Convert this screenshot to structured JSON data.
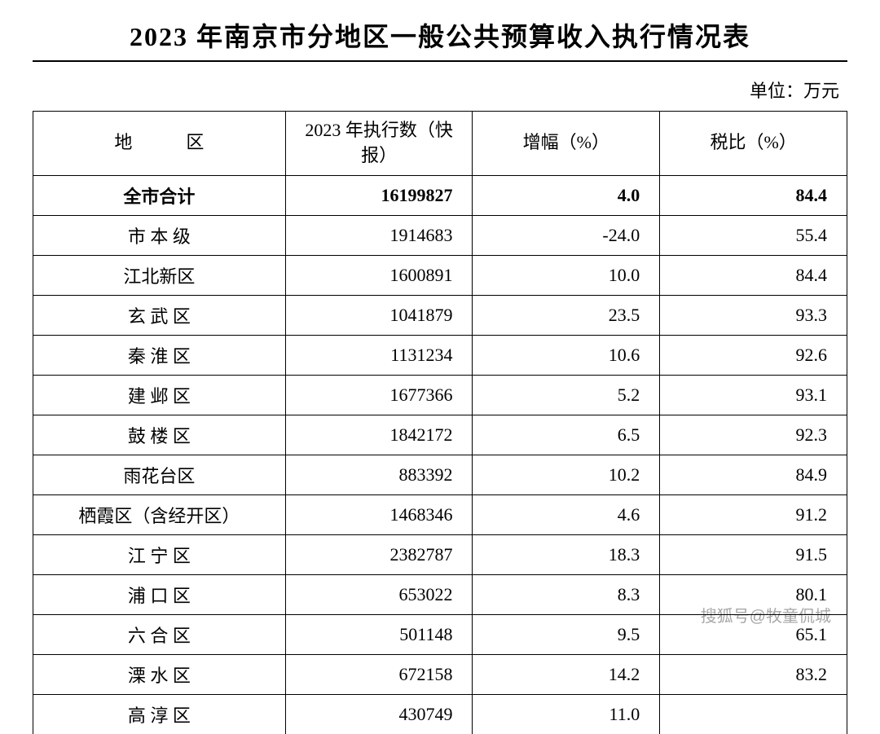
{
  "title": "2023 年南京市分地区一般公共预算收入执行情况表",
  "unit_label": "单位：万元",
  "headers": {
    "region": "地区",
    "exec": "2023 年执行数（快报）",
    "growth": "增幅（%）",
    "tax": "税比（%）"
  },
  "table": {
    "type": "table",
    "columns": [
      "地区",
      "2023年执行数(快报)",
      "增幅(%)",
      "税比(%)"
    ],
    "column_widths_pct": [
      31,
      23,
      23,
      23
    ],
    "column_align": [
      "center",
      "right",
      "right",
      "right"
    ],
    "border_color": "#000000",
    "background_color": "#ffffff",
    "font_family": "SimSun",
    "header_fontsize": 22,
    "cell_fontsize": 22,
    "rows": [
      {
        "region": "全市合计",
        "exec": "16199827",
        "growth": "4.0",
        "tax": "84.4",
        "bold": true,
        "spacing": ""
      },
      {
        "region": "市 本 级",
        "exec": "1914683",
        "growth": "-24.0",
        "tax": "55.4",
        "bold": false,
        "spacing": "spaced-2"
      },
      {
        "region": "江北新区",
        "exec": "1600891",
        "growth": "10.0",
        "tax": "84.4",
        "bold": false,
        "spacing": ""
      },
      {
        "region": "玄 武 区",
        "exec": "1041879",
        "growth": "23.5",
        "tax": "93.3",
        "bold": false,
        "spacing": "spaced-2"
      },
      {
        "region": "秦 淮 区",
        "exec": "1131234",
        "growth": "10.6",
        "tax": "92.6",
        "bold": false,
        "spacing": "spaced-2"
      },
      {
        "region": "建 邺 区",
        "exec": "1677366",
        "growth": "5.2",
        "tax": "93.1",
        "bold": false,
        "spacing": "spaced-2"
      },
      {
        "region": "鼓 楼 区",
        "exec": "1842172",
        "growth": "6.5",
        "tax": "92.3",
        "bold": false,
        "spacing": "spaced-2"
      },
      {
        "region": "雨花台区",
        "exec": "883392",
        "growth": "10.2",
        "tax": "84.9",
        "bold": false,
        "spacing": ""
      },
      {
        "region": "栖霞区（含经开区）",
        "exec": "1468346",
        "growth": "4.6",
        "tax": "91.2",
        "bold": false,
        "spacing": ""
      },
      {
        "region": "江 宁 区",
        "exec": "2382787",
        "growth": "18.3",
        "tax": "91.5",
        "bold": false,
        "spacing": "spaced-2"
      },
      {
        "region": "浦 口 区",
        "exec": "653022",
        "growth": "8.3",
        "tax": "80.1",
        "bold": false,
        "spacing": "spaced-2"
      },
      {
        "region": "六 合 区",
        "exec": "501148",
        "growth": "9.5",
        "tax": "65.1",
        "bold": false,
        "spacing": "spaced-2"
      },
      {
        "region": "溧 水 区",
        "exec": "672158",
        "growth": "14.2",
        "tax": "83.2",
        "bold": false,
        "spacing": "spaced-2"
      },
      {
        "region": "高 淳 区",
        "exec": "430749",
        "growth": "11.0",
        "tax": "",
        "bold": false,
        "spacing": "spaced-2"
      }
    ]
  },
  "watermark": "搜狐号@牧童侃城",
  "colors": {
    "text": "#000000",
    "background": "#ffffff",
    "border": "#000000",
    "watermark": "rgba(0,0,0,0.35)"
  },
  "typography": {
    "title_fontsize": 32,
    "title_weight": "bold",
    "unit_fontsize": 22,
    "cell_fontsize": 22
  }
}
